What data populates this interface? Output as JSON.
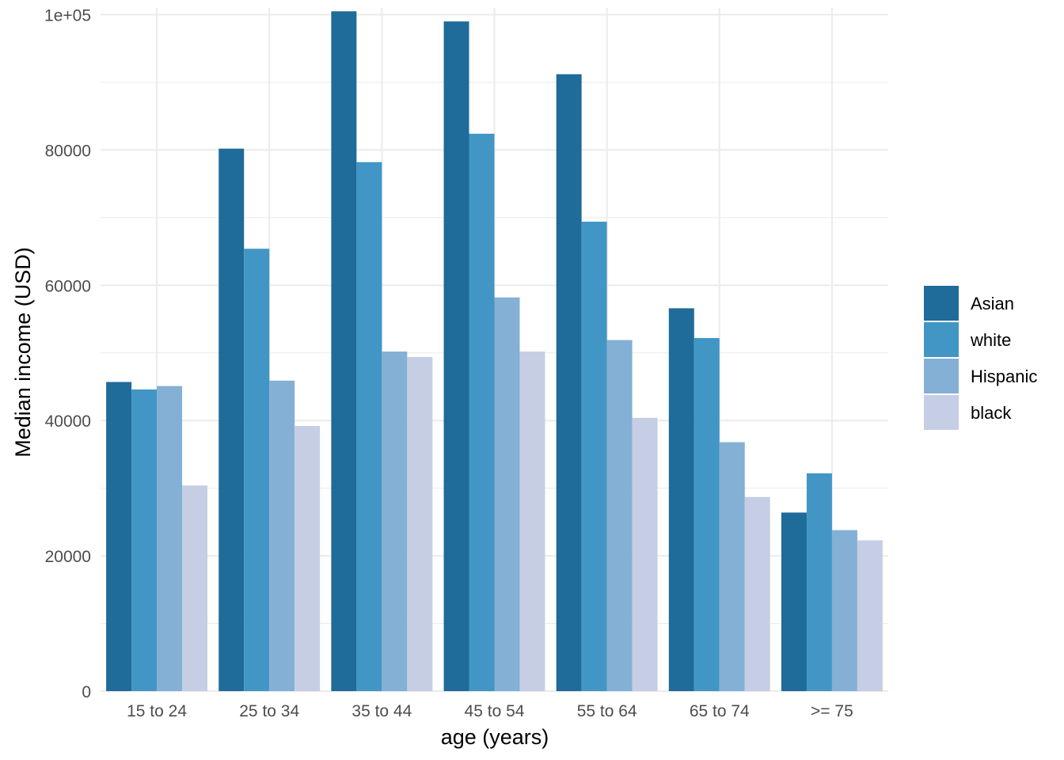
{
  "chart_data": {
    "type": "bar",
    "xlabel": "age (years)",
    "ylabel": "Median income (USD)",
    "ylim": [
      0,
      101000
    ],
    "y_ticks": [
      0,
      20000,
      40000,
      60000,
      80000,
      100000
    ],
    "y_tick_labels": [
      "0",
      "20000",
      "40000",
      "60000",
      "80000",
      "1e+05"
    ],
    "grid": true,
    "legend_position": "right",
    "categories": [
      "15 to 24",
      "25 to 34",
      "35 to 44",
      "45 to 54",
      "55 to 64",
      "65 to 74",
      ">= 75"
    ],
    "series": [
      {
        "name": "Asian",
        "color": "#1f6b9a",
        "values": [
          45700,
          80200,
          100500,
          99000,
          91200,
          56600,
          26400
        ]
      },
      {
        "name": "white",
        "color": "#4196c5",
        "values": [
          44600,
          65400,
          78200,
          82400,
          69400,
          52200,
          32200
        ]
      },
      {
        "name": "Hispanic",
        "color": "#83b0d4",
        "values": [
          45100,
          45900,
          50200,
          58200,
          51900,
          36800,
          23800
        ]
      },
      {
        "name": "black",
        "color": "#c5cee4",
        "values": [
          30400,
          39200,
          49400,
          50200,
          40400,
          28700,
          22300
        ]
      }
    ]
  }
}
